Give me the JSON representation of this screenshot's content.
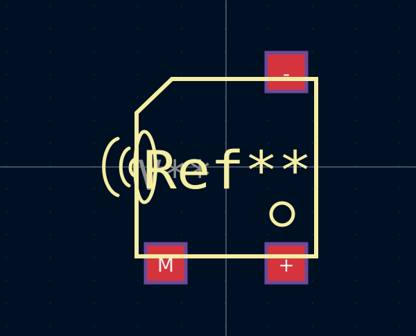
{
  "footprint": {
    "reference_text": "Ref**",
    "value_text": "V**"
  },
  "pads": [
    {
      "id": "minus",
      "label": "-"
    },
    {
      "id": "m",
      "label": "M"
    },
    {
      "id": "plus",
      "label": "+"
    }
  ],
  "colors": {
    "background": "#001023",
    "silkscreen": "#f4eea3",
    "pad_fill": "#d5343d",
    "pad_outline": "#6d4a9a",
    "value_text": "#8c8c8c",
    "crosshair": "#8190a8",
    "grid_dot": "#2b3b57"
  },
  "icons": [
    "wireless-sound-icon"
  ]
}
